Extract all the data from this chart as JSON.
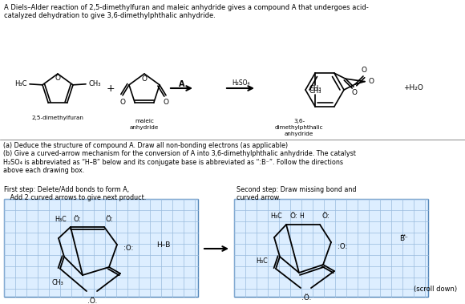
{
  "title_text": "A Diels–Alder reaction of 2,5-dimethylfuran and maleic anhydride gives a compound A that undergoes acid-\ncatalyzed dehydration to give 3,6-dimethylphthalic anhydride.",
  "bg_color": "#ffffff",
  "part_a_b_text": "(a) Deduce the structure of compound A. Draw all non-bonding electrons (as applicable)\n(b) Give a curved-arrow mechanism for the conversion of A into 3,6-dimethylphthalic anhydride. The catalyst\nH₂SO₄ is abbreviated as “H–B” below and its conjugate base is abbreviated as “:B⁻”. Follow the directions\nabove each drawing box.",
  "step1_title": "First step: Delete/Add bonds to form A,\n   Add 2 curved arrows to give next product.",
  "step2_title": "Second step: Draw missing bond and\ncurved arrow.",
  "scroll_text": "(scroll down)"
}
